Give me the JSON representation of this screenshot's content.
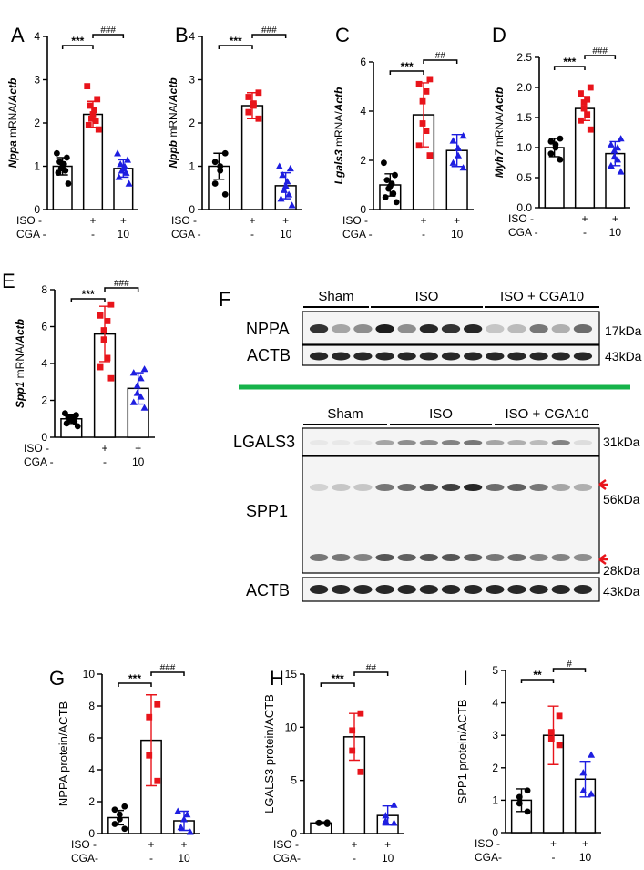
{
  "panels": {
    "A": {
      "label": "A",
      "ylabel_gene": "Nppa",
      "ylabel_rest": " mRNA/",
      "ylabel_ref": "Actb",
      "sig_left": "***",
      "sig_right": "###"
    },
    "B": {
      "label": "B",
      "ylabel_gene": "Nppb",
      "ylabel_rest": " mRNA/",
      "ylabel_ref": "Actb",
      "sig_left": "***",
      "sig_right": "###"
    },
    "C": {
      "label": "C",
      "ylabel_gene": "Lgals3",
      "ylabel_rest": " mRNA/",
      "ylabel_ref": "Actb",
      "sig_left": "***",
      "sig_right": "##"
    },
    "D": {
      "label": "D",
      "ylabel_gene": "Myh7",
      "ylabel_rest": " mRNA/",
      "ylabel_ref": "Actb",
      "sig_left": "***",
      "sig_right": "###"
    },
    "E": {
      "label": "E",
      "ylabel_gene": "Spp1",
      "ylabel_rest": " mRNA/",
      "ylabel_ref": "Actb",
      "sig_left": "***",
      "sig_right": "###"
    },
    "G": {
      "label": "G",
      "ylabel": "NPPA protein/ACTB",
      "sig_left": "***",
      "sig_right": "###"
    },
    "H": {
      "label": "H",
      "ylabel": "LGALS3 protein/ACTB",
      "sig_left": "***",
      "sig_right": "##"
    },
    "I": {
      "label": "I",
      "ylabel": "SPP1 protein/ACTB",
      "sig_left": "**",
      "sig_right": "#"
    }
  },
  "groups": {
    "iso_label": "ISO -",
    "iso_plus1": "+",
    "iso_plus2": "+",
    "cga_label": "CGA -",
    "cga_label_nospace": "CGA-",
    "cga_minus": "-",
    "cga_dose": "10"
  },
  "colors": {
    "sham": "#000000",
    "iso": "#e8141b",
    "cga": "#1e1ee0",
    "divider": "#16b34a",
    "arrow": "#e8141b"
  },
  "western": {
    "label": "F",
    "top": {
      "groups": [
        "Sham",
        "ISO",
        "ISO + CGA10"
      ],
      "bands": [
        {
          "name": "NPPA",
          "kda": "17kDa"
        },
        {
          "name": "ACTB",
          "kda": "43kDa"
        }
      ]
    },
    "bottom": {
      "groups": [
        "Sham",
        "ISO",
        "ISO + CGA10"
      ],
      "bands": [
        {
          "name": "LGALS3",
          "kda": "31kDa"
        },
        {
          "name": "SPP1",
          "kda": "56kDa",
          "kda2": "28kDa"
        },
        {
          "name": "ACTB",
          "kda": "43kDa"
        }
      ]
    }
  },
  "chart_data": [
    {
      "panel": "A",
      "type": "bar",
      "categories": [
        "Sham",
        "ISO",
        "ISO+CGA10"
      ],
      "values": [
        1.0,
        2.2,
        0.95
      ],
      "error": [
        0.2,
        0.3,
        0.2
      ],
      "ylim": [
        0,
        4
      ],
      "yticks": [
        0,
        1,
        2,
        3,
        4
      ],
      "points": [
        [
          0.6,
          0.85,
          0.9,
          0.95,
          1.0,
          1.05,
          1.1,
          1.2,
          1.3
        ],
        [
          1.85,
          1.95,
          2.05,
          2.1,
          2.2,
          2.3,
          2.4,
          2.55,
          2.85
        ],
        [
          0.6,
          0.75,
          0.85,
          0.9,
          0.95,
          1.0,
          1.05,
          1.15,
          1.3
        ]
      ]
    },
    {
      "panel": "B",
      "type": "bar",
      "categories": [
        "Sham",
        "ISO",
        "ISO+CGA10"
      ],
      "values": [
        1.0,
        2.4,
        0.55
      ],
      "error": [
        0.3,
        0.3,
        0.3
      ],
      "ylim": [
        0,
        4
      ],
      "yticks": [
        0,
        1,
        2,
        3,
        4
      ],
      "points": [
        [
          0.35,
          0.6,
          0.9,
          1.0,
          1.1,
          1.3
        ],
        [
          2.1,
          2.25,
          2.4,
          2.45,
          2.6,
          2.7
        ],
        [
          0.1,
          0.25,
          0.35,
          0.45,
          0.55,
          0.65,
          0.8,
          0.95,
          1.0
        ]
      ]
    },
    {
      "panel": "C",
      "type": "bar",
      "categories": [
        "Sham",
        "ISO",
        "ISO+CGA10"
      ],
      "values": [
        1.0,
        3.85,
        2.4
      ],
      "error": [
        0.45,
        1.3,
        0.65
      ],
      "ylim": [
        0,
        6
      ],
      "yticks": [
        0,
        2,
        4,
        6
      ],
      "points": [
        [
          0.3,
          0.5,
          0.65,
          0.85,
          0.95,
          1.05,
          1.2,
          1.4,
          1.9
        ],
        [
          2.2,
          2.6,
          3.2,
          3.5,
          4.4,
          4.8,
          5.1,
          5.3
        ],
        [
          1.7,
          1.9,
          2.2,
          2.5,
          2.8,
          3.0
        ]
      ]
    },
    {
      "panel": "D",
      "type": "bar",
      "categories": [
        "Sham",
        "ISO",
        "ISO+CGA10"
      ],
      "values": [
        1.0,
        1.65,
        0.9
      ],
      "error": [
        0.15,
        0.2,
        0.2
      ],
      "ylim": [
        0,
        2.5
      ],
      "yticks": [
        0,
        0.5,
        1.0,
        1.5,
        2.0,
        2.5
      ],
      "points": [
        [
          0.8,
          0.9,
          1.0,
          1.05,
          1.1,
          1.15
        ],
        [
          1.3,
          1.45,
          1.55,
          1.65,
          1.75,
          1.8,
          1.9,
          2.0
        ],
        [
          0.6,
          0.7,
          0.8,
          0.85,
          0.95,
          1.0,
          1.05,
          1.15
        ]
      ]
    },
    {
      "panel": "E",
      "type": "bar",
      "categories": [
        "Sham",
        "ISO",
        "ISO+CGA10"
      ],
      "values": [
        1.0,
        5.6,
        2.65
      ],
      "error": [
        0.25,
        1.5,
        0.85
      ],
      "ylim": [
        0,
        8
      ],
      "yticks": [
        0,
        2,
        4,
        6,
        8
      ],
      "points": [
        [
          0.6,
          0.75,
          0.85,
          0.95,
          1.0,
          1.05,
          1.1,
          1.2,
          1.3
        ],
        [
          3.2,
          3.8,
          4.3,
          5.3,
          5.8,
          6.3,
          6.6,
          7.2
        ],
        [
          1.6,
          1.9,
          2.2,
          2.4,
          2.8,
          3.2,
          3.5,
          3.7
        ]
      ]
    },
    {
      "panel": "G",
      "type": "bar",
      "categories": [
        "Sham",
        "ISO",
        "ISO+CGA10"
      ],
      "values": [
        1.0,
        5.85,
        0.8
      ],
      "error": [
        0.45,
        2.85,
        0.6
      ],
      "ylim": [
        0,
        10
      ],
      "yticks": [
        0,
        2,
        4,
        6,
        8,
        10
      ],
      "points": [
        [
          0.3,
          0.6,
          0.9,
          1.2,
          1.5,
          1.7
        ],
        [
          3.3,
          4.9,
          7.3,
          8.1
        ],
        [
          0.1,
          0.4,
          0.9,
          1.2,
          1.4
        ]
      ]
    },
    {
      "panel": "H",
      "type": "bar",
      "categories": [
        "Sham",
        "ISO",
        "ISO+CGA10"
      ],
      "values": [
        1.0,
        9.1,
        1.7
      ],
      "error": [
        0.1,
        2.2,
        0.9
      ],
      "ylim": [
        0,
        15
      ],
      "yticks": [
        0,
        5,
        10,
        15
      ],
      "points": [
        [
          0.9,
          1.0,
          1.0,
          1.05
        ],
        [
          5.8,
          7.8,
          9.7,
          11.3
        ],
        [
          1.0,
          1.2,
          1.7,
          2.7
        ]
      ]
    },
    {
      "panel": "I",
      "type": "bar",
      "categories": [
        "Sham",
        "ISO",
        "ISO+CGA10"
      ],
      "values": [
        1.0,
        3.0,
        1.65
      ],
      "error": [
        0.35,
        0.9,
        0.55
      ],
      "ylim": [
        0,
        5
      ],
      "yticks": [
        0,
        1,
        2,
        3,
        4,
        5
      ],
      "points": [
        [
          0.65,
          0.9,
          1.1,
          1.3
        ],
        [
          2.7,
          2.9,
          3.1,
          3.6
        ],
        [
          1.2,
          1.3,
          1.85,
          2.4
        ]
      ]
    }
  ]
}
